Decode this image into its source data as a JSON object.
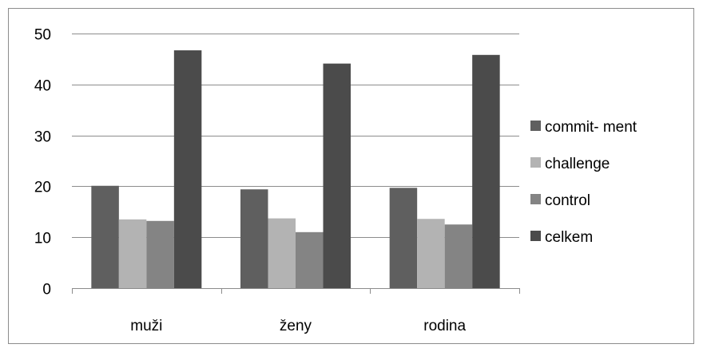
{
  "chart_data": {
    "type": "bar",
    "title": "",
    "xlabel": "",
    "ylabel": "",
    "categories": [
      "muži",
      "ženy",
      "rodina"
    ],
    "series": [
      {
        "name": "commit- ment",
        "values": [
          20.1,
          19.4,
          19.7
        ],
        "color": "#5f5f5f"
      },
      {
        "name": "challenge",
        "values": [
          13.5,
          13.7,
          13.6
        ],
        "color": "#b3b3b3"
      },
      {
        "name": "control",
        "values": [
          13.2,
          11.0,
          12.5
        ],
        "color": "#848484"
      },
      {
        "name": "celkem",
        "values": [
          46.7,
          44.1,
          45.8
        ],
        "color": "#4b4b4b"
      }
    ],
    "ylim": [
      0,
      50
    ],
    "yticks": [
      "0",
      "10",
      "20",
      "30",
      "40",
      "50"
    ],
    "grid": true,
    "legend_position": "right"
  }
}
